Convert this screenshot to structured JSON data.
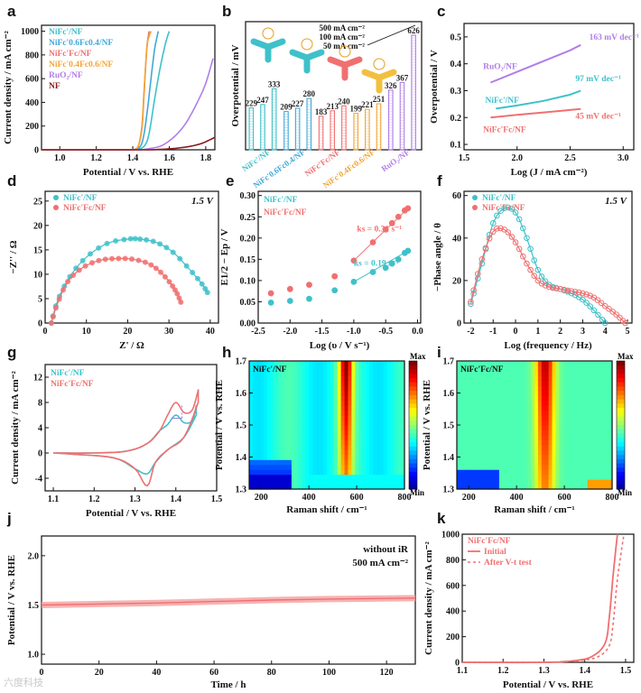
{
  "panels": {
    "a": {
      "letter": "a",
      "xlabel": "Potential / V vs. RHE",
      "ylabel": "Current density / mA cm⁻²",
      "xticks": [
        "1.0",
        "1.2",
        "1.4",
        "1.6",
        "1.8"
      ],
      "yticks": [
        "0",
        "200",
        "400",
        "600",
        "800",
        "1000"
      ],
      "legend": [
        {
          "label": "NiFc'/NF",
          "color": "#3fc1c9"
        },
        {
          "label": "NiFc'0.6Fc0.4/NF",
          "color": "#41a8d8"
        },
        {
          "label": "NiFc'Fc/NF",
          "color": "#f07070"
        },
        {
          "label": "NiFc'0.4Fc0.6/NF",
          "color": "#f2a535"
        },
        {
          "label": "RuO₂/NF",
          "color": "#b07ee8"
        },
        {
          "label": "NF",
          "color": "#8b1a1a"
        }
      ]
    },
    "b": {
      "letter": "b",
      "ylabel": "Overpotential / mV",
      "legend": [
        "500 mA cm⁻²",
        "100 mA cm⁻²",
        "50 mA cm⁻²"
      ],
      "groups": [
        "NiFc'/NF",
        "NiFc'0.6Fc0.4/NF",
        "NiFc'Fc/NF",
        "NiFc'0.4Fc0.6/NF",
        "RuO₂/NF"
      ],
      "bar_labels": [
        "229",
        "247",
        "333",
        "209",
        "227",
        "280",
        "183",
        "213",
        "240",
        "199",
        "221",
        "251",
        "326",
        "367",
        "626"
      ]
    },
    "c": {
      "letter": "c",
      "xlabel": "Log (J / mA cm⁻²)",
      "ylabel": "Overpotential / V",
      "xticks": [
        "1.5",
        "2.0",
        "2.5",
        "3.0"
      ],
      "yticks": [
        "0.1",
        "0.2",
        "0.3",
        "0.4",
        "0.5"
      ],
      "labels": [
        {
          "text": "RuO₂/NF",
          "color": "#b07ee8"
        },
        {
          "text": "NiFc'/NF",
          "color": "#3fc1c9"
        },
        {
          "text": "NiFc'Fc/NF",
          "color": "#f07070"
        }
      ],
      "slopes": [
        {
          "text": "163 mV dec⁻¹",
          "color": "#b07ee8"
        },
        {
          "text": "97 mV dec⁻¹",
          "color": "#3fc1c9"
        },
        {
          "text": "45 mV dec⁻¹",
          "color": "#f07070"
        }
      ]
    },
    "d": {
      "letter": "d",
      "xlabel": "Z' / Ω",
      "ylabel": "−Z'' / Ω",
      "note": "1.5 V",
      "xticks": [
        "0",
        "10",
        "20",
        "30",
        "40"
      ],
      "yticks": [
        "0",
        "5",
        "10",
        "15",
        "20",
        "25"
      ],
      "legend": [
        "NiFc'/NF",
        "NiFc'Fc/NF"
      ]
    },
    "e": {
      "letter": "e",
      "xlabel": "Log (υ / V s⁻¹)",
      "ylabel": "E1/2 − Ep / V",
      "xticks": [
        "-2.5",
        "-2.0",
        "-1.5",
        "-1.0",
        "-0.5",
        "0.0"
      ],
      "yticks": [
        "0.00",
        "0.05",
        "0.10",
        "0.15",
        "0.20",
        "0.25",
        "0.30"
      ],
      "legend": [
        "NiFc'/NF",
        "NiFc'Fc/NF"
      ],
      "ks_red": "ks = 0.31 s⁻¹",
      "ks_cyan": "ks = 0.19 s⁻¹"
    },
    "f": {
      "letter": "f",
      "xlabel": "Log (frequency / Hz)",
      "ylabel": "−Phase angle / θ",
      "note": "1.5 V",
      "xticks": [
        "-2",
        "-1",
        "0",
        "1",
        "2",
        "3",
        "4",
        "5"
      ],
      "yticks": [
        "0",
        "20",
        "40",
        "60"
      ],
      "legend": [
        "NiFc'/NF",
        "NiFc'Fc/NF"
      ]
    },
    "g": {
      "letter": "g",
      "xlabel": "Potential / V vs. RHE",
      "ylabel": "Current density / mA cm⁻²",
      "xticks": [
        "1.1",
        "1.2",
        "1.3",
        "1.4",
        "1.5"
      ],
      "yticks": [
        "-4",
        "0",
        "4",
        "8",
        "12"
      ],
      "legend": [
        "NiFc'/NF",
        "NiFc'Fc/NF"
      ]
    },
    "h": {
      "letter": "h",
      "xlabel": "Raman shift / cm⁻¹",
      "ylabel": "Potential / V vs. RHE",
      "label": "NiFc'/NF",
      "xticks": [
        "200",
        "400",
        "600",
        "800"
      ],
      "yticks": [
        "1.3",
        "1.4",
        "1.5",
        "1.6",
        "1.7"
      ]
    },
    "i": {
      "letter": "i",
      "xlabel": "Raman shift / cm⁻¹",
      "ylabel": "Potential / V vs. RHE",
      "label": "NiFc'Fc/NF",
      "xticks": [
        "200",
        "400",
        "600",
        "800"
      ],
      "yticks": [
        "1.3",
        "1.4",
        "1.5",
        "1.6",
        "1.7"
      ],
      "cbar_max": "Max",
      "cbar_min": "Min"
    },
    "j": {
      "letter": "j",
      "xlabel": "Time / h",
      "ylabel": "Potential / V vs. RHE",
      "note1": "without iR",
      "note2": "500 mA cm⁻²",
      "xticks": [
        "0",
        "20",
        "40",
        "60",
        "80",
        "100",
        "120"
      ],
      "yticks": [
        "1.0",
        "1.5",
        "2.0"
      ]
    },
    "k": {
      "letter": "k",
      "xlabel": "Potential / V vs. RHE",
      "ylabel": "Current density / mA cm⁻²",
      "xticks": [
        "1.1",
        "1.2",
        "1.3",
        "1.4",
        "1.5"
      ],
      "yticks": [
        "0",
        "200",
        "400",
        "600",
        "800",
        "1000"
      ],
      "legend": [
        "NiFc'Fc/NF",
        "Initial",
        "After V-t test"
      ]
    }
  },
  "watermark": "六度科技",
  "chart_data": [
    {
      "panel": "a",
      "type": "line",
      "xlim": [
        0.9,
        1.85
      ],
      "ylim": [
        0,
        1050
      ],
      "series": [
        {
          "name": "NiFc'/NF",
          "x": [
            1.4,
            1.45,
            1.48,
            1.5,
            1.52,
            1.55,
            1.58,
            1.6
          ],
          "y": [
            0,
            15,
            80,
            230,
            430,
            690,
            900,
            1000
          ]
        },
        {
          "name": "NiFc'0.6Fc0.4/NF",
          "x": [
            1.4,
            1.44,
            1.46,
            1.48,
            1.5,
            1.52,
            1.54
          ],
          "y": [
            0,
            25,
            120,
            330,
            600,
            850,
            1000
          ]
        },
        {
          "name": "NiFc'Fc/NF",
          "x": [
            1.4,
            1.43,
            1.45,
            1.46,
            1.47,
            1.48,
            1.49
          ],
          "y": [
            0,
            30,
            180,
            420,
            690,
            900,
            1000
          ]
        },
        {
          "name": "NiFc'0.4Fc0.6/NF",
          "x": [
            1.4,
            1.43,
            1.45,
            1.46,
            1.47,
            1.48,
            1.5
          ],
          "y": [
            0,
            30,
            200,
            450,
            700,
            900,
            1000
          ]
        },
        {
          "name": "RuO₂/NF",
          "x": [
            1.45,
            1.55,
            1.62,
            1.68,
            1.72,
            1.76,
            1.8,
            1.84
          ],
          "y": [
            0,
            30,
            100,
            200,
            300,
            420,
            560,
            770
          ]
        },
        {
          "name": "NF",
          "x": [
            1.5,
            1.6,
            1.7,
            1.78,
            1.85
          ],
          "y": [
            0,
            8,
            25,
            55,
            105
          ]
        }
      ]
    },
    {
      "panel": "b",
      "type": "bar",
      "categories": [
        "NiFc'/NF",
        "NiFc'0.6Fc0.4/NF",
        "NiFc'Fc/NF",
        "NiFc'0.4Fc0.6/NF",
        "RuO₂/NF"
      ],
      "series": [
        {
          "name": "50 mA cm⁻²",
          "values": [
            229,
            209,
            183,
            199,
            326
          ]
        },
        {
          "name": "100 mA cm⁻²",
          "values": [
            247,
            227,
            213,
            221,
            367
          ]
        },
        {
          "name": "500 mA cm⁻²",
          "values": [
            333,
            280,
            240,
            251,
            626
          ]
        }
      ]
    },
    {
      "panel": "c",
      "type": "line",
      "xlim": [
        1.5,
        3.1
      ],
      "ylim": [
        0.08,
        0.55
      ],
      "series": [
        {
          "name": "RuO₂/NF",
          "x": [
            1.75,
            2.0,
            2.25,
            2.5,
            2.6
          ],
          "y": [
            0.33,
            0.37,
            0.41,
            0.45,
            0.47
          ]
        },
        {
          "name": "NiFc'/NF",
          "x": [
            1.8,
            2.0,
            2.25,
            2.5,
            2.6
          ],
          "y": [
            0.233,
            0.245,
            0.262,
            0.285,
            0.3
          ]
        },
        {
          "name": "NiFc'Fc/NF",
          "x": [
            1.75,
            2.0,
            2.25,
            2.5,
            2.6
          ],
          "y": [
            0.2,
            0.21,
            0.219,
            0.228,
            0.232
          ]
        }
      ]
    },
    {
      "panel": "d",
      "type": "scatter",
      "xlim": [
        0,
        42
      ],
      "ylim": [
        0,
        27
      ],
      "series": [
        {
          "name": "NiFc'/NF",
          "x": [
            1.5,
            3,
            6,
            10,
            15,
            20,
            23,
            27,
            31,
            35,
            38,
            39.5
          ],
          "y": [
            0,
            4.5,
            9.5,
            13.5,
            16.3,
            17.2,
            17.2,
            16.5,
            14.5,
            11,
            8,
            6
          ]
        },
        {
          "name": "NiFc'Fc/NF",
          "x": [
            1.5,
            3,
            5.5,
            9,
            13,
            17,
            21,
            25,
            28,
            30.5,
            32,
            33
          ],
          "y": [
            0,
            4,
            8.5,
            11.3,
            12.8,
            13.2,
            13.1,
            12.2,
            10.4,
            8,
            6,
            4
          ]
        }
      ]
    },
    {
      "panel": "e",
      "type": "scatter",
      "xlim": [
        -2.5,
        0.05
      ],
      "ylim": [
        0,
        0.31
      ],
      "series": [
        {
          "name": "NiFc'/NF",
          "x": [
            -2.3,
            -2.0,
            -1.7,
            -1.3,
            -1.0,
            -0.7,
            -0.5,
            -0.4,
            -0.3,
            -0.2,
            -0.15
          ],
          "y": [
            0.048,
            0.052,
            0.057,
            0.077,
            0.097,
            0.12,
            0.13,
            0.14,
            0.15,
            0.165,
            0.17
          ]
        },
        {
          "name": "NiFc'Fc/NF",
          "x": [
            -2.3,
            -2.0,
            -1.7,
            -1.3,
            -1.0,
            -0.7,
            -0.5,
            -0.4,
            -0.3,
            -0.2,
            -0.15
          ],
          "y": [
            0.07,
            0.08,
            0.09,
            0.11,
            0.147,
            0.19,
            0.22,
            0.235,
            0.25,
            0.265,
            0.27
          ]
        }
      ]
    },
    {
      "panel": "f",
      "type": "line",
      "xlim": [
        -2.3,
        5.2
      ],
      "ylim": [
        0,
        62
      ],
      "series": [
        {
          "name": "NiFc'/NF",
          "x": [
            -2,
            -1.5,
            -1,
            -0.5,
            0,
            0.5,
            1,
            1.5,
            2,
            2.5,
            3,
            3.5,
            4
          ],
          "y": [
            9,
            28,
            47,
            54,
            52,
            40,
            25,
            18,
            16,
            14,
            11,
            6,
            0
          ]
        },
        {
          "name": "NiFc'Fc/NF",
          "x": [
            -2,
            -1.5,
            -1,
            -0.5,
            0,
            0.5,
            1,
            1.5,
            2,
            2.5,
            3,
            3.5,
            4,
            4.5,
            4.9
          ],
          "y": [
            10,
            30,
            43,
            44,
            38,
            28,
            20,
            17,
            16,
            15,
            14,
            12,
            8,
            4,
            0
          ]
        }
      ]
    },
    {
      "panel": "g",
      "type": "line",
      "xlim": [
        1.08,
        1.5
      ],
      "ylim": [
        -6,
        14
      ]
    },
    {
      "panel": "h",
      "type": "heatmap",
      "xlim": [
        150,
        800
      ],
      "ylim": [
        1.3,
        1.7
      ]
    },
    {
      "panel": "i",
      "type": "heatmap",
      "xlim": [
        150,
        800
      ],
      "ylim": [
        1.3,
        1.7
      ]
    },
    {
      "panel": "j",
      "type": "line",
      "xlim": [
        0,
        130
      ],
      "ylim": [
        0.9,
        2.2
      ],
      "series": [
        {
          "name": "without iR",
          "x": [
            0,
            20,
            40,
            60,
            80,
            100,
            130
          ],
          "y": [
            1.5,
            1.51,
            1.52,
            1.535,
            1.55,
            1.56,
            1.57
          ]
        }
      ]
    },
    {
      "panel": "k",
      "type": "line",
      "xlim": [
        1.1,
        1.52
      ],
      "ylim": [
        0,
        1000
      ],
      "series": [
        {
          "name": "Initial",
          "x": [
            1.3,
            1.38,
            1.42,
            1.45,
            1.46,
            1.47,
            1.48
          ],
          "y": [
            0,
            15,
            50,
            150,
            350,
            700,
            1000
          ]
        },
        {
          "name": "After V-t test",
          "x": [
            1.3,
            1.38,
            1.43,
            1.46,
            1.47,
            1.48,
            1.495
          ],
          "y": [
            0,
            12,
            40,
            130,
            320,
            650,
            980
          ]
        }
      ]
    }
  ]
}
